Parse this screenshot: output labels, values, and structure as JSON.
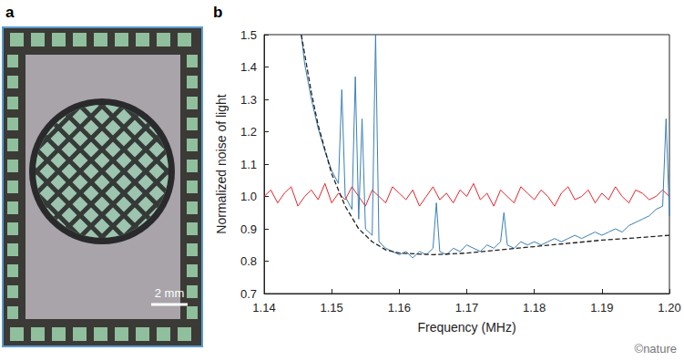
{
  "figure": {
    "panel_label_photo": "a",
    "scale_bar": "2 mm",
    "panel_label_chart": "b",
    "credit": "©nature"
  },
  "chart_data": {
    "type": "line",
    "xlabel": "Frequency (MHz)",
    "ylabel": "Normalized noise of light",
    "xlim": [
      1.14,
      1.2
    ],
    "xticks": [
      1.14,
      1.15,
      1.16,
      1.17,
      1.18,
      1.19,
      {
        "value": 1.2,
        "label": "1.20"
      }
    ],
    "ylim": [
      0.7,
      1.5
    ],
    "yticks": [
      0.7,
      0.8,
      0.9,
      {
        "value": 1,
        "label": "1.0"
      },
      1.1,
      1.2,
      1.3,
      1.4,
      1.5
    ],
    "grid": false,
    "series": [
      {
        "color": "#e3242b",
        "line_style": "solid",
        "x": [
          1.14,
          1.141,
          1.142,
          1.143,
          1.144,
          1.145,
          1.146,
          1.147,
          1.148,
          1.149,
          1.15,
          1.151,
          1.152,
          1.153,
          1.154,
          1.155,
          1.156,
          1.157,
          1.158,
          1.159,
          1.16,
          1.161,
          1.162,
          1.163,
          1.164,
          1.165,
          1.166,
          1.167,
          1.168,
          1.169,
          1.17,
          1.171,
          1.172,
          1.173,
          1.174,
          1.175,
          1.176,
          1.177,
          1.178,
          1.179,
          1.18,
          1.181,
          1.182,
          1.183,
          1.184,
          1.185,
          1.186,
          1.187,
          1.188,
          1.189,
          1.19,
          1.191,
          1.192,
          1.193,
          1.194,
          1.195,
          1.196,
          1.197,
          1.198,
          1.199,
          1.2
        ],
        "values": [
          1.0,
          1.02,
          0.98,
          1.01,
          1.03,
          0.97,
          1.0,
          1.02,
          0.99,
          1.04,
          0.98,
          1.01,
          0.99,
          1.03,
          1.0,
          0.97,
          1.02,
          1.0,
          0.98,
          1.03,
          1.01,
          0.99,
          1.02,
          0.97,
          1.0,
          1.03,
          0.99,
          1.01,
          0.98,
          1.02,
          1.0,
          1.04,
          0.99,
          1.01,
          0.97,
          1.02,
          1.0,
          0.98,
          1.03,
          1.01,
          0.99,
          1.02,
          1.0,
          0.97,
          1.01,
          1.03,
          0.99,
          1.0,
          1.02,
          0.98,
          1.01,
          0.99,
          1.03,
          1.0,
          0.98,
          1.02,
          1.01,
          0.99,
          1.0,
          1.02,
          1.0
        ]
      },
      {
        "color": "#3a7fb5",
        "line_style": "solid",
        "x": [
          1.1455,
          1.146,
          1.147,
          1.148,
          1.149,
          1.15,
          1.151,
          1.1515,
          1.152,
          1.153,
          1.1535,
          1.154,
          1.1545,
          1.155,
          1.156,
          1.1565,
          1.157,
          1.158,
          1.159,
          1.16,
          1.161,
          1.162,
          1.163,
          1.164,
          1.165,
          1.1655,
          1.166,
          1.167,
          1.168,
          1.169,
          1.17,
          1.171,
          1.172,
          1.173,
          1.174,
          1.175,
          1.1755,
          1.176,
          1.177,
          1.178,
          1.179,
          1.18,
          1.181,
          1.182,
          1.183,
          1.184,
          1.185,
          1.186,
          1.187,
          1.188,
          1.189,
          1.19,
          1.191,
          1.192,
          1.193,
          1.194,
          1.195,
          1.196,
          1.197,
          1.198,
          1.199,
          1.1995,
          1.2
        ],
        "values": [
          1.5,
          1.41,
          1.3,
          1.21,
          1.14,
          1.08,
          1.04,
          1.33,
          1.0,
          0.96,
          1.37,
          0.93,
          1.24,
          0.9,
          0.88,
          1.5,
          0.86,
          0.84,
          0.83,
          0.82,
          0.83,
          0.81,
          0.83,
          0.82,
          0.84,
          0.98,
          0.83,
          0.82,
          0.84,
          0.83,
          0.85,
          0.84,
          0.83,
          0.85,
          0.84,
          0.86,
          0.95,
          0.85,
          0.84,
          0.86,
          0.85,
          0.86,
          0.85,
          0.86,
          0.87,
          0.86,
          0.87,
          0.88,
          0.87,
          0.88,
          0.89,
          0.88,
          0.89,
          0.9,
          0.89,
          0.91,
          0.92,
          0.93,
          0.94,
          0.96,
          0.97,
          1.24,
          0.94
        ]
      },
      {
        "color": "#222222",
        "line_style": "dashed",
        "x": [
          1.1455,
          1.147,
          1.148,
          1.15,
          1.152,
          1.154,
          1.156,
          1.158,
          1.16,
          1.165,
          1.17,
          1.175,
          1.18,
          1.185,
          1.19,
          1.195,
          1.2
        ],
        "values": [
          1.5,
          1.32,
          1.22,
          1.07,
          0.97,
          0.9,
          0.86,
          0.835,
          0.825,
          0.82,
          0.825,
          0.835,
          0.845,
          0.855,
          0.865,
          0.872,
          0.88
        ]
      }
    ]
  }
}
